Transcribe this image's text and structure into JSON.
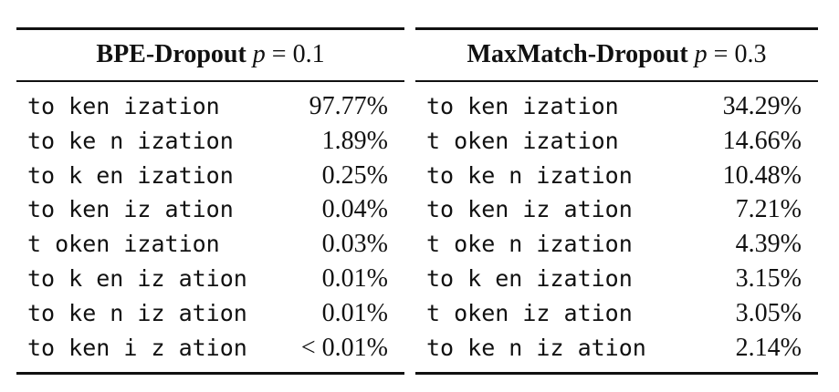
{
  "left_table": {
    "title": "BPE-Dropout",
    "param_symbol": "p",
    "param_eq": "=",
    "param_value": "0.1",
    "rows": [
      {
        "segmentation": "to ken ization",
        "percent": "97.77%"
      },
      {
        "segmentation": "to ke n ization",
        "percent": "1.89%"
      },
      {
        "segmentation": "to k en ization",
        "percent": "0.25%"
      },
      {
        "segmentation": "to ken iz ation",
        "percent": "0.04%"
      },
      {
        "segmentation": "t oken ization",
        "percent": "0.03%"
      },
      {
        "segmentation": "to k en iz ation",
        "percent": "0.01%"
      },
      {
        "segmentation": "to ke n iz ation",
        "percent": "0.01%"
      },
      {
        "segmentation": "to ken i z ation",
        "percent": "< 0.01%"
      }
    ]
  },
  "right_table": {
    "title": "MaxMatch-Dropout",
    "param_symbol": "p",
    "param_eq": "=",
    "param_value": "0.3",
    "rows": [
      {
        "segmentation": "to ken ization",
        "percent": "34.29%"
      },
      {
        "segmentation": "t oken ization",
        "percent": "14.66%"
      },
      {
        "segmentation": "to ke n ization",
        "percent": "10.48%"
      },
      {
        "segmentation": "to ken iz ation",
        "percent": "7.21%"
      },
      {
        "segmentation": "t oke n ization",
        "percent": "4.39%"
      },
      {
        "segmentation": "to k en ization",
        "percent": "3.15%"
      },
      {
        "segmentation": "t oken iz ation",
        "percent": "3.05%"
      },
      {
        "segmentation": "to ke n iz ation",
        "percent": "2.14%"
      }
    ]
  }
}
